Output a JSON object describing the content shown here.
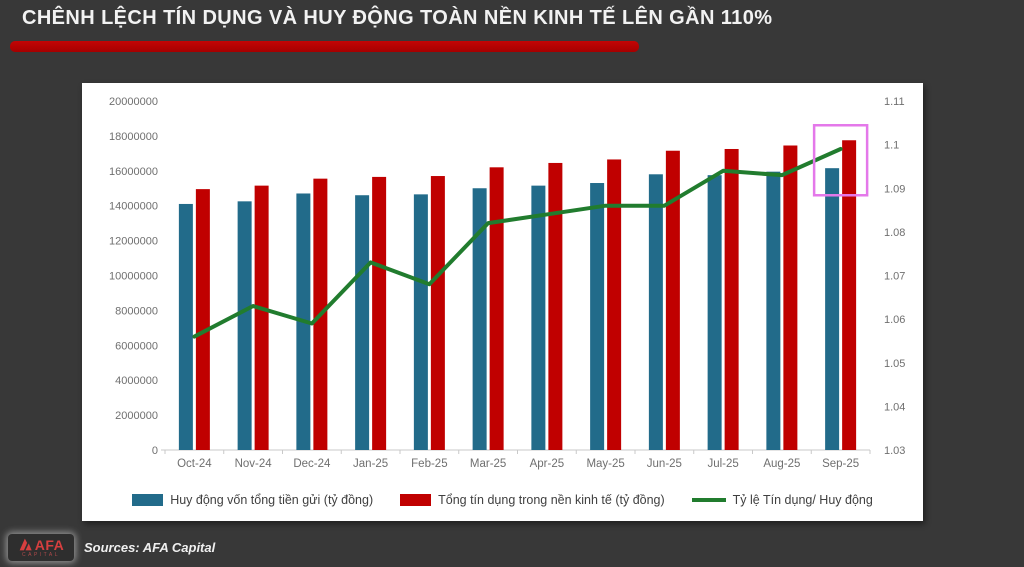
{
  "page": {
    "title": "CHÊNH LỆCH TÍN DỤNG VÀ HUY ĐỘNG TOÀN NỀN KINH TẾ LÊN GẦN 110%",
    "background_color": "#383838",
    "accent_red": "#b00500"
  },
  "footer": {
    "source_label": "Sources: AFA Capital",
    "logo_text": "AFA",
    "logo_subtext": "CAPITAL"
  },
  "chart_data": {
    "type": "bar",
    "subtype": "combo-bar-line",
    "categories": [
      "Oct-24",
      "Nov-24",
      "Dec-24",
      "Jan-25",
      "Feb-25",
      "Mar-25",
      "Apr-25",
      "May-25",
      "Jun-25",
      "Jul-25",
      "Aug-25",
      "Sep-25"
    ],
    "series": [
      {
        "name": "Huy động vốn tổng tiền gửi (tỷ đồng)",
        "type": "bar",
        "axis": "left",
        "color": "#226b8a",
        "values": [
          14100000,
          14250000,
          14700000,
          14600000,
          14650000,
          15000000,
          15150000,
          15300000,
          15800000,
          15750000,
          15950000,
          16150000
        ]
      },
      {
        "name": "Tổng tín dụng trong nền kinh tế (tỷ đồng)",
        "type": "bar",
        "axis": "left",
        "color": "#c00000",
        "values": [
          14950000,
          15150000,
          15550000,
          15650000,
          15700000,
          16200000,
          16450000,
          16650000,
          17150000,
          17250000,
          17450000,
          17750000
        ]
      },
      {
        "name": "Tỷ lệ Tín dụng/ Huy động",
        "type": "line",
        "axis": "right",
        "color": "#217c2e",
        "values": [
          1.056,
          1.063,
          1.059,
          1.073,
          1.068,
          1.082,
          1.084,
          1.086,
          1.086,
          1.094,
          1.093,
          1.099
        ]
      }
    ],
    "left_axis": {
      "min": 0,
      "max": 20000000,
      "step": 2000000,
      "tick_labels": [
        "0",
        "2000000",
        "4000000",
        "6000000",
        "8000000",
        "10000000",
        "12000000",
        "14000000",
        "16000000",
        "18000000",
        "20000000"
      ]
    },
    "right_axis": {
      "min": 1.03,
      "max": 1.11,
      "step": 0.01,
      "tick_labels": [
        "1.03",
        "1.04",
        "1.05",
        "1.06",
        "1.07",
        "1.08",
        "1.09",
        "1.1",
        "1.11"
      ]
    },
    "highlight": {
      "category": "Sep-25",
      "color": "#e478ea"
    },
    "legend_position": "bottom",
    "gridlines": false,
    "title": "",
    "xlabel": "",
    "ylabel": ""
  }
}
